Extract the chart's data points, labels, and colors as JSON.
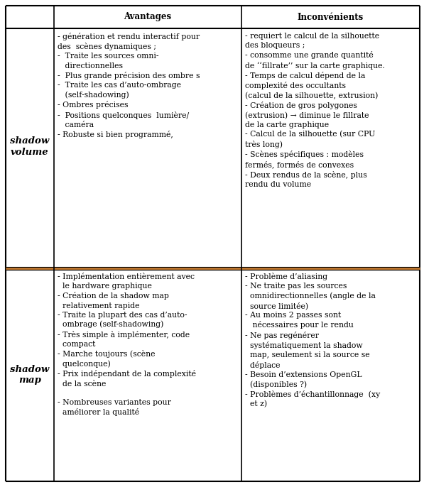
{
  "col_headers": [
    "Avantages",
    "Inconvénients"
  ],
  "row_labels_1": [
    "shadow",
    "volume"
  ],
  "row_labels_2": [
    "shadow",
    "map"
  ],
  "divider_color": "#c07830",
  "font_size": 7.8,
  "header_font_size": 8.5,
  "row_label_font_size": 9.5,
  "shadow_volume_advantages": "- génération et rendu interactif pour\ndes  scènes dynamiques ;\n-  Traite les sources omni-\n   directionnelles\n-  Plus grande précision des ombre s\n-  Traite les cas d’auto-ombrage\n   (self-shadowing)\n- Ombres précises\n-  Positions quelconques  lumière/\n   caméra\n- Robuste si bien programmé,",
  "shadow_volume_inconvenients_parts": [
    {
      "text": "- requiert le calcul de la silhouette\ndes bloqueurs ;\n- consomme une grande quantité\nde ",
      "italic": false
    },
    {
      "text": "fillrate",
      "italic": true
    },
    {
      "text": " sur la carte graphique.\n- Temps de calcul dépend de la\ncomplexité des occultants\n(calcul de la silhouette, extrusion)\n- Création de gros polygones\n(extrusion) → diminue le fillrate\nde la carte graphique\n- Calcul de la silhouette (sur CPU\ntrès long)\n- Scènes spécifiques : modèles\nfermés, formés de convexes\n- Deux rendus de la scène, plus\nrendu du volume",
      "italic": false
    }
  ],
  "shadow_map_advantages": "- Implémentation entièrement avec\n  le hardware graphique\n- Création de la shadow map\n  relativement rapide\n- Traite la plupart des cas d’auto-\n  ombrage (self-shadowing)\n- Très simple à implémenter, code\n  compact\n- Marche toujours (scène\n  quelconque)\n- Prix indépendant de la complexité\n  de la scène\n\n- Nombreuses variantes pour\n  améliorer la qualité",
  "shadow_map_inconvenients": "- Problème d’aliasing\n- Ne traite pas les sources\n  omnidirectionnelles (angle de la\n  source limitée)\n- Au moins 2 passes sont\n   nécessaires pour le rendu\n- Ne pas regénérer\n  systématiquement la shadow\n  map, seulement si la source se\n  déplace\n- Besoin d’extensions OpenGL\n  (disponibles ?)\n- Problèmes d’échantillonnage  (xy\n  et z)"
}
